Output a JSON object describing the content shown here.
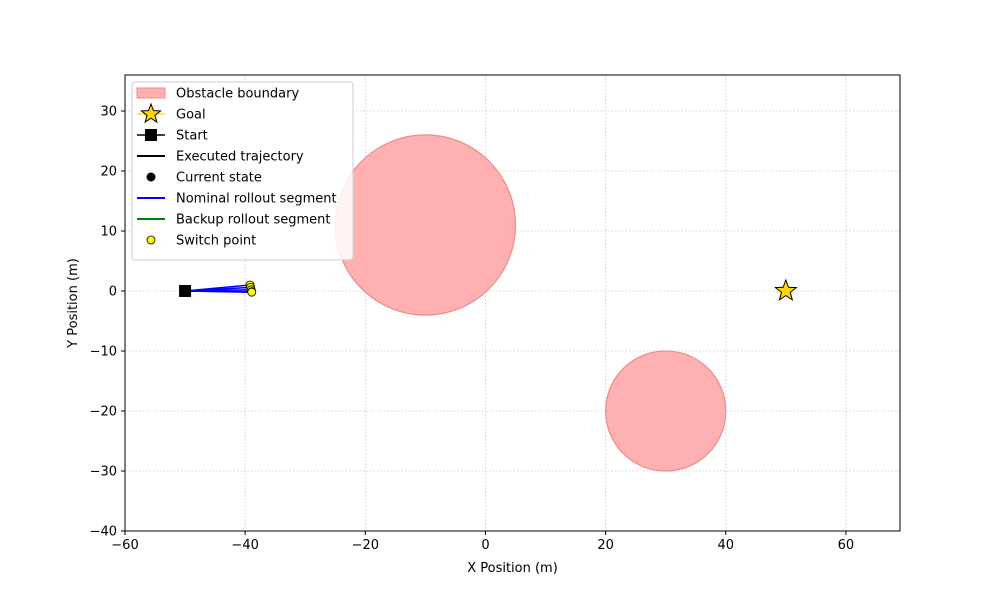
{
  "chart_data": {
    "type": "scatter",
    "title": "",
    "xlabel": "X Position (m)",
    "ylabel": "Y Position (m)",
    "xlim": [
      -60,
      69
    ],
    "ylim": [
      -40,
      36
    ],
    "xticks": [
      -60,
      -40,
      -20,
      0,
      20,
      40,
      60
    ],
    "yticks": [
      -40,
      -30,
      -20,
      -10,
      0,
      10,
      20,
      30
    ],
    "xtick_labels": [
      "−60",
      "−40",
      "−20",
      "0",
      "20",
      "40",
      "60"
    ],
    "ytick_labels": [
      "−40",
      "−30",
      "−20",
      "−10",
      "0",
      "10",
      "20",
      "30"
    ],
    "grid": true,
    "legend_position": "top-left",
    "obstacles": [
      {
        "cx": -10,
        "cy": 11,
        "r": 15
      },
      {
        "cx": 30,
        "cy": -20,
        "r": 10
      }
    ],
    "goal": {
      "x": 50,
      "y": 0
    },
    "start": {
      "x": -50,
      "y": 0
    },
    "nominal_rollouts": [
      {
        "from": [
          -50,
          0
        ],
        "to": [
          -39.2,
          1.0
        ]
      },
      {
        "from": [
          -50,
          0
        ],
        "to": [
          -39.1,
          0.6
        ]
      },
      {
        "from": [
          -50,
          0
        ],
        "to": [
          -39.0,
          0.2
        ]
      },
      {
        "from": [
          -50,
          0
        ],
        "to": [
          -38.9,
          -0.1
        ]
      },
      {
        "from": [
          -50,
          0
        ],
        "to": [
          -38.9,
          -0.2
        ]
      }
    ],
    "switch_points": [
      {
        "x": -39.2,
        "y": 1.0
      },
      {
        "x": -39.1,
        "y": 0.6
      },
      {
        "x": -39.0,
        "y": 0.2
      },
      {
        "x": -38.9,
        "y": -0.1
      },
      {
        "x": -38.9,
        "y": -0.2
      }
    ],
    "legend": [
      {
        "label": "Obstacle boundary",
        "kind": "patch",
        "color": "#ffb0b0"
      },
      {
        "label": "Goal",
        "kind": "star",
        "color": "#ffd700"
      },
      {
        "label": "Start",
        "kind": "square",
        "color": "#000000"
      },
      {
        "label": "Executed trajectory",
        "kind": "line",
        "color": "#000000"
      },
      {
        "label": "Current state",
        "kind": "dot",
        "color": "#000000"
      },
      {
        "label": "Nominal rollout segment",
        "kind": "line",
        "color": "#0000ff"
      },
      {
        "label": "Backup rollout segment",
        "kind": "line",
        "color": "#008000"
      },
      {
        "label": "Switch point",
        "kind": "smalldot",
        "color": "#ffff00"
      }
    ]
  },
  "colors": {
    "obstacle_fill": "#ffb0b0",
    "obstacle_edge": "#f08a8a",
    "goal": "#ffd700",
    "nominal": "#0000ff",
    "backup": "#008000",
    "switch": "#ffff00",
    "grid": "#c8c8c8"
  }
}
